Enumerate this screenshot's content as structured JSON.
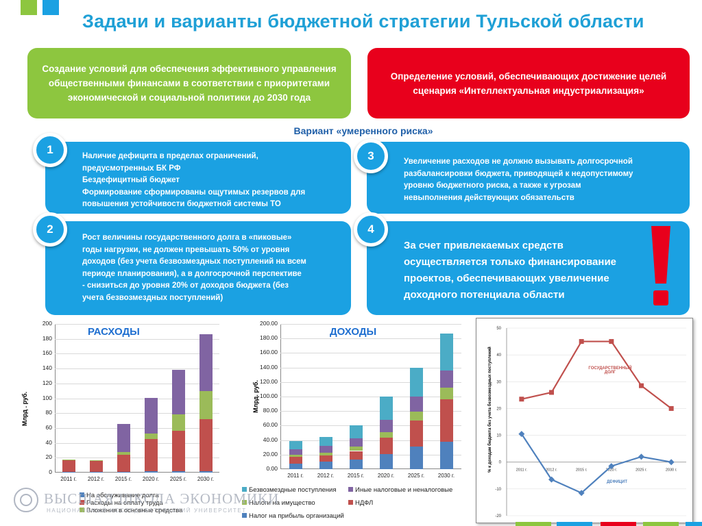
{
  "slide": {
    "title": "Задачи и варианты бюджетной стратегии Тульской области",
    "top_left_text": "Создание условий для обеспечения эффективного управления общественными финансами в соответствии с приоритетами экономической и социальной политики до 2030 года",
    "top_right_text": "Определение условий, обеспечивающих достижение целей сценария «Интеллектуальная индустриализация»",
    "variant_label": "Вариант «умеренного риска»",
    "box1": {
      "number": "1",
      "lines": [
        "Наличие дефицита в пределах ограничений,",
        "предусмотренных БК РФ",
        "Бездефицитный бюджет",
        "Формирование сформированы ощутимых резервов для",
        "повышения устойчивости бюджетной системы ТО"
      ]
    },
    "box2": {
      "number": "2",
      "lines": [
        "Рост величины государственного долга в «пиковые»",
        "годы нагрузки, не должен превышать 50% от уровня",
        "доходов (без учета безвозмездных поступлений на всем",
        "периоде планирования), а в долгосрочной перспективе",
        "- снизиться до уровня 20% от доходов бюджета (без",
        "учета безвозмездных поступлений)"
      ]
    },
    "box3": {
      "number": "3",
      "lines": [
        "Увеличение расходов не должно вызывать долгосрочной",
        "разбалансировки бюджета, приводящей к недопустимому",
        "уровню бюджетного риска, а также к угрозам",
        "невыполнения действующих обязательств"
      ]
    },
    "box4": {
      "number": "4",
      "lines": [
        "За счет привлекаемых средств",
        "осуществляется только финансирование",
        "проектов, обеспечивающих увеличение",
        "доходного потенциала области"
      ]
    },
    "exclamation": "!",
    "colors": {
      "green": "#8dc63f",
      "red": "#e8001c",
      "blue": "#1ba1e2",
      "title": "#1fa0d6"
    }
  },
  "chart_data": [
    {
      "type": "bar",
      "stacked": true,
      "title": "РАСХОДЫ",
      "ylabel": "Млрд . руб.",
      "ylim": [
        0,
        200
      ],
      "yticks": [
        "0",
        "20",
        "40",
        "60",
        "80",
        "100",
        "120",
        "140",
        "160",
        "180",
        "200"
      ],
      "categories": [
        "2011 г.",
        "2012 г.",
        "2015 г.",
        "2020 г.",
        "2025 г.",
        "2030 г."
      ],
      "series": [
        {
          "name": "На обслуживание долга",
          "color": "#4f81bd",
          "values": [
            0.5,
            0.5,
            1,
            1.5,
            1.5,
            1.5
          ]
        },
        {
          "name": "Расходы на оплату труда",
          "color": "#c0504d",
          "values": [
            16,
            16,
            23,
            44,
            55,
            70
          ]
        },
        {
          "name": "Вложения в основные средства",
          "color": "#9bbb59",
          "values": [
            1,
            0.5,
            4,
            7,
            22,
            38
          ]
        },
        {
          "name": "",
          "color": "#8064a2",
          "values": [
            0,
            0,
            37,
            48,
            60,
            77
          ]
        }
      ]
    },
    {
      "type": "bar",
      "stacked": true,
      "title": "ДОХОДЫ",
      "ylabel": "Млрд. руб.",
      "ylim": [
        0,
        200
      ],
      "yticks": [
        "0.00",
        "20.00",
        "40.00",
        "60.00",
        "80.00",
        "100.00",
        "120.00",
        "140.00",
        "160.00",
        "180.00",
        "200.00"
      ],
      "categories": [
        "2011 г.",
        "2012 г.",
        "2015 г.",
        "2020 г.",
        "2025 г.",
        "2030 г."
      ],
      "series": [
        {
          "name": "Налог на прибыль организаций",
          "color": "#4f81bd",
          "values": [
            8,
            10,
            13,
            21,
            31,
            38
          ]
        },
        {
          "name": "НДФЛ",
          "color": "#c0504d",
          "values": [
            9,
            9,
            12,
            22,
            36,
            58
          ]
        },
        {
          "name": "Налоги на имущество",
          "color": "#9bbb59",
          "values": [
            3,
            4,
            6,
            8,
            12,
            16
          ]
        },
        {
          "name": "Иные налоговые и неналоговые",
          "color": "#8064a2",
          "values": [
            7,
            9,
            11,
            17,
            21,
            24
          ]
        },
        {
          "name": "Безвозмездные поступления",
          "color": "#4bacc6",
          "values": [
            12,
            12,
            18,
            32,
            40,
            51
          ]
        }
      ]
    },
    {
      "type": "line",
      "ylabel": "% к доходам бюджета без учета безвозмездных поступлений",
      "ylim": [
        -20,
        50
      ],
      "yticks": [
        "-20",
        "-10",
        "0",
        "10",
        "20",
        "30",
        "40",
        "50"
      ],
      "categories": [
        "2011 г.",
        "2012 г.",
        "2015 г.",
        "2020 г.",
        "2025 г.",
        "2030 г."
      ],
      "series": [
        {
          "name": "ГОСУДАРСТВЕННЫЙ ДОЛГ",
          "color": "#c0504d",
          "values": [
            23.5,
            26,
            45,
            45,
            28.5,
            20
          ]
        },
        {
          "name": "ДЕФИЦИТ",
          "color": "#4f81bd",
          "values": [
            10.5,
            -6.5,
            -11.5,
            -1.5,
            2,
            0
          ]
        }
      ]
    }
  ],
  "footer": {
    "logo_text": "ВЫСШАЯ ШКОЛА ЭКОНОМИКИ",
    "logo_subtext": "НАЦИОНАЛЬНЫЙ ИССЛЕДОВАТЕЛЬСКИЙ УНИВЕРСИТЕТ"
  }
}
